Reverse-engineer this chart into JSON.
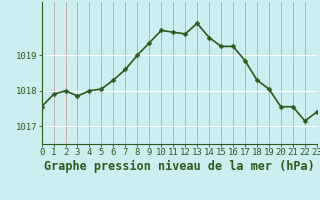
{
  "hours": [
    0,
    1,
    2,
    3,
    4,
    5,
    6,
    7,
    8,
    9,
    10,
    11,
    12,
    13,
    14,
    15,
    16,
    17,
    18,
    19,
    20,
    21,
    22,
    23
  ],
  "pressure": [
    1017.55,
    1017.9,
    1018.0,
    1017.85,
    1018.0,
    1018.05,
    1018.3,
    1018.6,
    1019.0,
    1019.35,
    1019.7,
    1019.65,
    1019.6,
    1019.9,
    1019.5,
    1019.25,
    1019.25,
    1018.85,
    1018.3,
    1018.05,
    1017.55,
    1017.55,
    1017.15,
    1017.4
  ],
  "line_color": "#2d5a1b",
  "marker": "D",
  "marker_size": 2.5,
  "bg_color": "#cceef0",
  "grid_color_v": "#c8a0a0",
  "grid_color_h": "#ffffff",
  "ylabel_ticks": [
    1017,
    1018,
    1019
  ],
  "ylim": [
    1016.5,
    1020.5
  ],
  "xlim": [
    0,
    23
  ],
  "title": "Graphe pression niveau de la mer (hPa)",
  "title_fontsize": 8.5,
  "tick_fontsize": 6.5,
  "line_width": 1.2,
  "spine_color": "#2d5a1b"
}
